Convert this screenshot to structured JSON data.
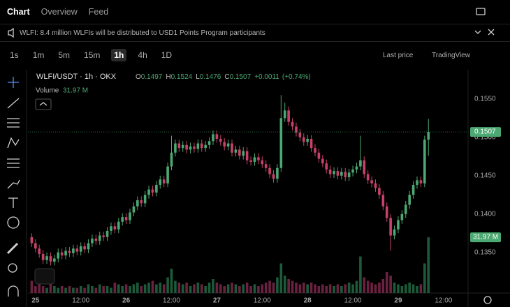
{
  "tabs": [
    "Chart",
    "Overview",
    "Feed"
  ],
  "notice": "WLFI: 8.4 million WLFIs will be distributed to USD1 Points Program participants",
  "toolbar": {
    "intervals": [
      "1s",
      "1m",
      "5m",
      "15m",
      "1h",
      "4h",
      "1D"
    ],
    "active_interval": "1h",
    "price_mode": "Last price",
    "chart_engine": "TradingView"
  },
  "chart_data": {
    "type": "candlestick",
    "symbol": "WLFI/USDT · 1h · OKX",
    "ohlc_letters": [
      "O",
      "H",
      "L",
      "C"
    ],
    "change": "+0.0011",
    "change_pct": "(+0.74%)",
    "volume_title": "Volume",
    "last_volume_label": "31.97 M",
    "up_color": "#4ca872",
    "down_color": "#c8416a",
    "volume_up_color": "#1c5a3a",
    "volume_down_color": "#6a2240",
    "xlim": [
      -2,
      114.5
    ],
    "ylim": [
      0.1297,
      0.1588
    ],
    "volume_ylim": [
      0,
      32
    ],
    "grid": false,
    "yticks": [
      {
        "value": 0.135,
        "label": "0.1350"
      },
      {
        "value": 0.14,
        "label": "0.1400"
      },
      {
        "value": 0.145,
        "label": "0.1450"
      },
      {
        "value": 0.15,
        "label": "0.1500"
      },
      {
        "value": 0.155,
        "label": "0.1550"
      }
    ],
    "xticks": [
      {
        "value": 0,
        "label": "25"
      },
      {
        "value": 12,
        "label": "12:00"
      },
      {
        "value": 24,
        "label": "26"
      },
      {
        "value": 36,
        "label": "12:00"
      },
      {
        "value": 48,
        "label": "27"
      },
      {
        "value": 60,
        "label": "12:00"
      },
      {
        "value": 72,
        "label": "28"
      },
      {
        "value": 84,
        "label": "12:00"
      },
      {
        "value": 96,
        "label": "29"
      },
      {
        "value": 108,
        "label": "12:00"
      }
    ],
    "x": [
      -1,
      0,
      1,
      2,
      3,
      4,
      5,
      6,
      7,
      8,
      9,
      10,
      11,
      12,
      13,
      14,
      15,
      16,
      17,
      18,
      19,
      20,
      21,
      22,
      23,
      24,
      25,
      26,
      27,
      28,
      29,
      30,
      31,
      32,
      33,
      34,
      35,
      36,
      37,
      38,
      39,
      40,
      41,
      42,
      43,
      44,
      45,
      46,
      47,
      48,
      49,
      50,
      51,
      52,
      53,
      54,
      55,
      56,
      57,
      58,
      59,
      60,
      61,
      62,
      63,
      64,
      65,
      66,
      67,
      68,
      69,
      70,
      71,
      72,
      73,
      74,
      75,
      76,
      77,
      78,
      79,
      80,
      81,
      82,
      83,
      84,
      85,
      86,
      87,
      88,
      89,
      90,
      91,
      92,
      93,
      94,
      95,
      96,
      97,
      98,
      99,
      100,
      101,
      102,
      103,
      104
    ],
    "open": [
      0.137,
      0.1362,
      0.1355,
      0.1348,
      0.134,
      0.1345,
      0.1338,
      0.1342,
      0.135,
      0.1346,
      0.1352,
      0.1349,
      0.1355,
      0.1351,
      0.1358,
      0.1354,
      0.1362,
      0.1368,
      0.1365,
      0.1372,
      0.137,
      0.1378,
      0.1384,
      0.138,
      0.139,
      0.1396,
      0.1392,
      0.1402,
      0.141,
      0.1418,
      0.1414,
      0.1425,
      0.1432,
      0.1428,
      0.1438,
      0.1445,
      0.144,
      0.1462,
      0.148,
      0.1492,
      0.1486,
      0.149,
      0.1484,
      0.1488,
      0.1485,
      0.1492,
      0.1486,
      0.149,
      0.1495,
      0.1504,
      0.1498,
      0.1494,
      0.1488,
      0.1492,
      0.148,
      0.1484,
      0.1476,
      0.1482,
      0.147,
      0.1468,
      0.1474,
      0.147,
      0.1465,
      0.146,
      0.1452,
      0.1446,
      0.146,
      0.1525,
      0.1535,
      0.152,
      0.1514,
      0.1506,
      0.15,
      0.1494,
      0.1498,
      0.1486,
      0.148,
      0.1472,
      0.1466,
      0.1458,
      0.1452,
      0.1456,
      0.145,
      0.1455,
      0.1448,
      0.1454,
      0.1458,
      0.1462,
      0.147,
      0.1452,
      0.1444,
      0.144,
      0.1434,
      0.1425,
      0.141,
      0.1395,
      0.1372,
      0.138,
      0.1392,
      0.14,
      0.1412,
      0.1425,
      0.1438,
      0.1444,
      0.144,
      0.1497
    ],
    "high": [
      0.1375,
      0.1367,
      0.136,
      0.1353,
      0.135,
      0.135,
      0.1347,
      0.1355,
      0.1355,
      0.1357,
      0.1357,
      0.136,
      0.136,
      0.1363,
      0.1363,
      0.1367,
      0.1373,
      0.1373,
      0.1377,
      0.1377,
      0.1383,
      0.1389,
      0.1389,
      0.1395,
      0.1401,
      0.1401,
      0.1407,
      0.1415,
      0.1423,
      0.1423,
      0.143,
      0.1437,
      0.1437,
      0.1443,
      0.145,
      0.145,
      0.1467,
      0.1502,
      0.1497,
      0.1497,
      0.1495,
      0.1495,
      0.1493,
      0.1493,
      0.1497,
      0.1497,
      0.1495,
      0.15,
      0.1509,
      0.1509,
      0.1503,
      0.1499,
      0.1497,
      0.1497,
      0.1489,
      0.1489,
      0.1487,
      0.1487,
      0.1475,
      0.1479,
      0.1479,
      0.1475,
      0.147,
      0.1465,
      0.1457,
      0.1465,
      0.1555,
      0.1545,
      0.154,
      0.1525,
      0.1519,
      0.1511,
      0.1505,
      0.1503,
      0.1503,
      0.1491,
      0.1485,
      0.1477,
      0.1471,
      0.1463,
      0.1461,
      0.1461,
      0.146,
      0.146,
      0.1459,
      0.1463,
      0.1467,
      0.1502,
      0.1475,
      0.1457,
      0.1449,
      0.1445,
      0.1439,
      0.143,
      0.1415,
      0.14,
      0.1385,
      0.1397,
      0.1405,
      0.1417,
      0.143,
      0.1443,
      0.1449,
      0.1449,
      0.1502,
      0.1524
    ],
    "low": [
      0.1357,
      0.135,
      0.1343,
      0.1335,
      0.1335,
      0.1333,
      0.1333,
      0.1337,
      0.1341,
      0.1341,
      0.1344,
      0.1344,
      0.1346,
      0.1346,
      0.1349,
      0.1349,
      0.1357,
      0.136,
      0.136,
      0.1365,
      0.1365,
      0.1373,
      0.1375,
      0.1375,
      0.1385,
      0.1387,
      0.1387,
      0.1397,
      0.1405,
      0.1409,
      0.1409,
      0.142,
      0.1423,
      0.1423,
      0.1433,
      0.1435,
      0.1435,
      0.1457,
      0.1475,
      0.1481,
      0.1481,
      0.1479,
      0.1479,
      0.148,
      0.148,
      0.1481,
      0.1481,
      0.1485,
      0.149,
      0.1493,
      0.1489,
      0.1483,
      0.1483,
      0.1475,
      0.1475,
      0.1471,
      0.1471,
      0.1465,
      0.1463,
      0.1463,
      0.1465,
      0.146,
      0.1455,
      0.1447,
      0.1441,
      0.1441,
      0.1455,
      0.152,
      0.1515,
      0.1509,
      0.1501,
      0.1495,
      0.1489,
      0.1489,
      0.1481,
      0.1475,
      0.1467,
      0.1461,
      0.1453,
      0.1447,
      0.1447,
      0.1445,
      0.1445,
      0.1443,
      0.1443,
      0.1449,
      0.1453,
      0.1457,
      0.1447,
      0.1439,
      0.1435,
      0.1429,
      0.142,
      0.1405,
      0.139,
      0.1352,
      0.1367,
      0.1375,
      0.1387,
      0.1395,
      0.1407,
      0.142,
      0.1433,
      0.1435,
      0.1435,
      0.1476
    ],
    "close": [
      0.1362,
      0.1355,
      0.1348,
      0.134,
      0.1345,
      0.1338,
      0.1342,
      0.135,
      0.1346,
      0.1352,
      0.1349,
      0.1355,
      0.1351,
      0.1358,
      0.1354,
      0.1362,
      0.1368,
      0.1365,
      0.1372,
      0.137,
      0.1378,
      0.1384,
      0.138,
      0.139,
      0.1396,
      0.1392,
      0.1402,
      0.141,
      0.1418,
      0.1414,
      0.1425,
      0.1432,
      0.1428,
      0.1438,
      0.1445,
      0.144,
      0.1462,
      0.148,
      0.1492,
      0.1486,
      0.149,
      0.1484,
      0.1488,
      0.1485,
      0.1492,
      0.1486,
      0.149,
      0.1495,
      0.1504,
      0.1498,
      0.1494,
      0.1488,
      0.1492,
      0.148,
      0.1484,
      0.1476,
      0.1482,
      0.147,
      0.1468,
      0.1474,
      0.147,
      0.1465,
      0.146,
      0.1452,
      0.1446,
      0.146,
      0.1525,
      0.1535,
      0.152,
      0.1514,
      0.1506,
      0.15,
      0.1494,
      0.1498,
      0.1486,
      0.148,
      0.1472,
      0.1466,
      0.1458,
      0.1452,
      0.1456,
      0.145,
      0.1455,
      0.1448,
      0.1454,
      0.1458,
      0.1462,
      0.147,
      0.1452,
      0.1444,
      0.144,
      0.1434,
      0.1425,
      0.141,
      0.1395,
      0.1372,
      0.138,
      0.1392,
      0.14,
      0.1412,
      0.1425,
      0.1438,
      0.1444,
      0.144,
      0.1497,
      0.1507
    ],
    "volume": [
      7,
      4,
      5,
      4,
      3,
      5,
      4,
      3,
      4,
      3,
      4,
      3,
      3,
      4,
      3,
      5,
      4,
      3,
      5,
      4,
      4,
      3,
      6,
      5,
      4,
      5,
      4,
      5,
      6,
      4,
      5,
      6,
      7,
      5,
      6,
      5,
      9,
      14,
      7,
      6,
      5,
      6,
      4,
      5,
      6,
      5,
      4,
      6,
      8,
      6,
      5,
      4,
      5,
      6,
      5,
      4,
      5,
      6,
      4,
      5,
      4,
      5,
      6,
      7,
      6,
      9,
      17,
      10,
      8,
      7,
      6,
      5,
      6,
      5,
      6,
      5,
      4,
      5,
      4,
      5,
      4,
      5,
      4,
      5,
      6,
      5,
      7,
      21,
      9,
      7,
      6,
      5,
      6,
      8,
      12,
      10,
      6,
      5,
      4,
      5,
      6,
      5,
      4,
      5,
      17,
      31.97
    ]
  }
}
